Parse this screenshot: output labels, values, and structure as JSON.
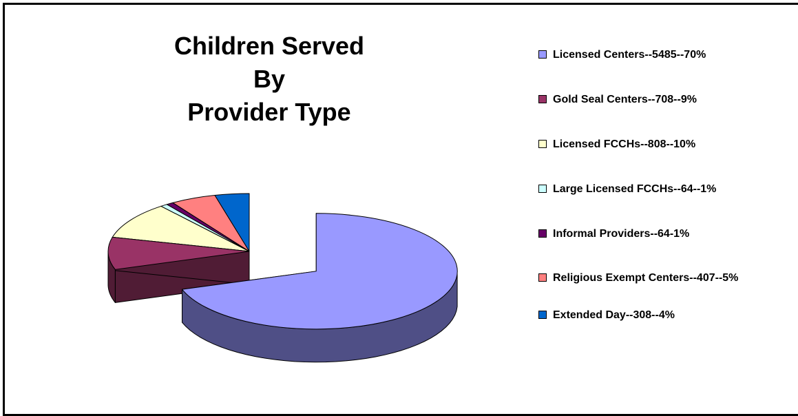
{
  "chart_data": {
    "type": "pie",
    "title_lines": [
      "Children Served",
      "By",
      "Provider Type"
    ],
    "legend_position": "right",
    "three_d": true,
    "slices": [
      {
        "label": "Licensed Centers--5485--70%",
        "value": 5485,
        "percent": 70,
        "color": "#9999ff",
        "side_color": "#4f4f86"
      },
      {
        "label": "Gold Seal Centers--708--9%",
        "value": 708,
        "percent": 9,
        "color": "#993366",
        "side_color": "#501c35"
      },
      {
        "label": "Licensed FCCHs--808--10%",
        "value": 808,
        "percent": 10,
        "color": "#ffffcc",
        "side_color": "#7f7f66"
      },
      {
        "label": "Large Licensed FCCHs--64--1%",
        "value": 64,
        "percent": 1,
        "color": "#ccffff",
        "side_color": "#667f7f"
      },
      {
        "label": "Informal Providers--64-1%",
        "value": 64,
        "percent": 1,
        "color": "#660066",
        "side_color": "#330033"
      },
      {
        "label": "Religious Exempt Centers--407--5%",
        "value": 407,
        "percent": 5,
        "color": "#ff8080",
        "side_color": "#804040"
      },
      {
        "label": "Extended Day--308--4%",
        "value": 308,
        "percent": 4,
        "color": "#0066cc",
        "side_color": "#003366"
      }
    ]
  }
}
